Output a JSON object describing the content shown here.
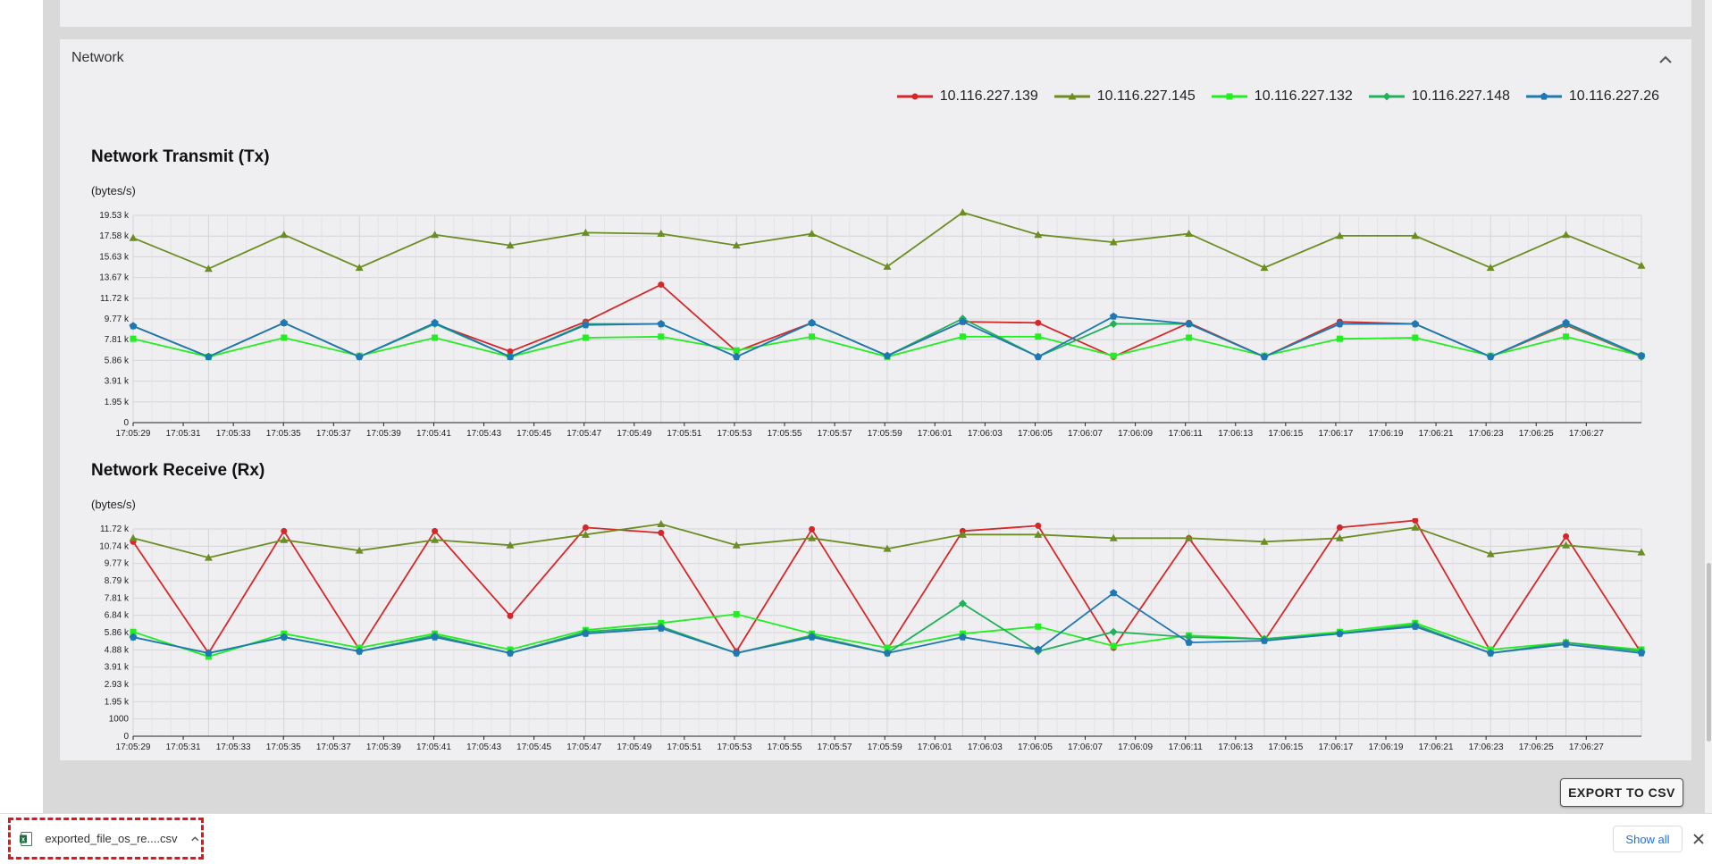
{
  "panel": {
    "title": "Network"
  },
  "legend": [
    {
      "name": "10.116.227.139",
      "color": "#d62728",
      "marker": "circle"
    },
    {
      "name": "10.116.227.145",
      "color": "#6b8e23",
      "marker": "triangle"
    },
    {
      "name": "10.116.227.132",
      "color": "#22ee22",
      "marker": "square"
    },
    {
      "name": "10.116.227.148",
      "color": "#22b05a",
      "marker": "diamond"
    },
    {
      "name": "10.116.227.26",
      "color": "#1f77b4",
      "marker": "pentagon"
    }
  ],
  "chart_data": [
    {
      "type": "line",
      "title": "Network Transmit (Tx)",
      "ylabel": "(bytes/s)",
      "ylim": [
        0,
        19530
      ],
      "yticks": [
        "0",
        "1.95 k",
        "3.91 k",
        "5.86 k",
        "7.81 k",
        "9.77 k",
        "11.72 k",
        "13.67 k",
        "15.63 k",
        "17.58 k",
        "19.53 k"
      ],
      "xticks": [
        "17:05:29",
        "17:05:31",
        "17:05:33",
        "17:05:35",
        "17:05:37",
        "17:05:39",
        "17:05:41",
        "17:05:43",
        "17:05:45",
        "17:05:47",
        "17:05:49",
        "17:05:51",
        "17:05:53",
        "17:05:55",
        "17:05:57",
        "17:05:59",
        "17:06:01",
        "17:06:03",
        "17:06:05",
        "17:06:07",
        "17:06:09",
        "17:06:11",
        "17:06:13",
        "17:06:15",
        "17:06:17",
        "17:06:19",
        "17:06:21",
        "17:06:23",
        "17:06:25",
        "17:06:27"
      ],
      "x": [
        0,
        2,
        4,
        6,
        8,
        10,
        12,
        14,
        16,
        18,
        20,
        22,
        24,
        26,
        28,
        30,
        32,
        34,
        36,
        38,
        40
      ],
      "series": [
        {
          "name": "10.116.227.139",
          "values": [
            9100,
            6200,
            9400,
            6200,
            9300,
            6700,
            9500,
            13000,
            6700,
            9400,
            6300,
            9500,
            9400,
            6200,
            9400,
            6200,
            9500,
            9300,
            6200,
            9200,
            6200
          ]
        },
        {
          "name": "10.116.227.145",
          "values": [
            17400,
            14500,
            17700,
            14600,
            17700,
            16700,
            17900,
            17800,
            16700,
            17800,
            14700,
            19800,
            17700,
            17000,
            17800,
            14600,
            17600,
            17600,
            14600,
            17700,
            14800
          ]
        },
        {
          "name": "10.116.227.132",
          "values": [
            7900,
            6200,
            8000,
            6300,
            8000,
            6200,
            8000,
            8100,
            6800,
            8100,
            6200,
            8100,
            8100,
            6300,
            8000,
            6300,
            7900,
            8000,
            6300,
            8100,
            6300
          ]
        },
        {
          "name": "10.116.227.148",
          "values": [
            9100,
            6200,
            9400,
            6200,
            9300,
            6200,
            9300,
            9300,
            6200,
            9400,
            6300,
            9800,
            6200,
            9300,
            9300,
            6200,
            9300,
            9300,
            6200,
            9300,
            6200
          ]
        },
        {
          "name": "10.116.227.26",
          "values": [
            9100,
            6200,
            9400,
            6200,
            9400,
            6200,
            9200,
            9300,
            6200,
            9400,
            6300,
            9500,
            6200,
            10000,
            9300,
            6200,
            9300,
            9300,
            6200,
            9400,
            6300
          ]
        }
      ]
    },
    {
      "type": "line",
      "title": "Network Receive (Rx)",
      "ylabel": "(bytes/s)",
      "ylim": [
        0,
        11720
      ],
      "yticks": [
        "0",
        "1000",
        "1.95 k",
        "2.93 k",
        "3.91 k",
        "4.88 k",
        "5.86 k",
        "6.84 k",
        "7.81 k",
        "8.79 k",
        "9.77 k",
        "10.74 k",
        "11.72 k"
      ],
      "xticks": [
        "17:05:29",
        "17:05:31",
        "17:05:33",
        "17:05:35",
        "17:05:37",
        "17:05:39",
        "17:05:41",
        "17:05:43",
        "17:05:45",
        "17:05:47",
        "17:05:49",
        "17:05:51",
        "17:05:53",
        "17:05:55",
        "17:05:57",
        "17:05:59",
        "17:06:01",
        "17:06:03",
        "17:06:05",
        "17:06:07",
        "17:06:09",
        "17:06:11",
        "17:06:13",
        "17:06:15",
        "17:06:17",
        "17:06:19",
        "17:06:21",
        "17:06:23",
        "17:06:25",
        "17:06:27"
      ],
      "x": [
        0,
        2,
        4,
        6,
        8,
        10,
        12,
        14,
        16,
        18,
        20,
        22,
        24,
        26,
        28,
        30,
        32,
        34,
        36,
        38,
        40
      ],
      "series": [
        {
          "name": "10.116.227.139",
          "values": [
            11000,
            4700,
            11600,
            4900,
            11600,
            6800,
            11800,
            11500,
            4800,
            11700,
            4900,
            11600,
            11900,
            5000,
            11200,
            5400,
            11800,
            12200,
            4800,
            11300,
            4700
          ]
        },
        {
          "name": "10.116.227.145",
          "values": [
            11200,
            10100,
            11100,
            10500,
            11100,
            10800,
            11400,
            12000,
            10800,
            11200,
            10600,
            11400,
            11400,
            11200,
            11200,
            11000,
            11200,
            11800,
            10300,
            10800,
            10400
          ]
        },
        {
          "name": "10.116.227.132",
          "values": [
            5900,
            4500,
            5800,
            5000,
            5800,
            4900,
            6000,
            6400,
            6900,
            5800,
            5000,
            5800,
            6200,
            5100,
            5700,
            5500,
            5900,
            6400,
            4900,
            5300,
            4900
          ]
        },
        {
          "name": "10.116.227.148",
          "values": [
            5600,
            4700,
            5600,
            4800,
            5700,
            4700,
            5900,
            6200,
            4700,
            5700,
            4700,
            7500,
            4800,
            5900,
            5600,
            5500,
            5800,
            6300,
            4700,
            5300,
            4800
          ]
        },
        {
          "name": "10.116.227.26",
          "values": [
            5600,
            4700,
            5600,
            4800,
            5600,
            4700,
            5800,
            6100,
            4700,
            5600,
            4700,
            5600,
            4900,
            8100,
            5300,
            5400,
            5800,
            6200,
            4700,
            5200,
            4700
          ]
        }
      ]
    }
  ],
  "export_button": {
    "label": "EXPORT TO CSV"
  },
  "downloads": {
    "filename": "exported_file_os_re....csv",
    "show_all": "Show all"
  }
}
